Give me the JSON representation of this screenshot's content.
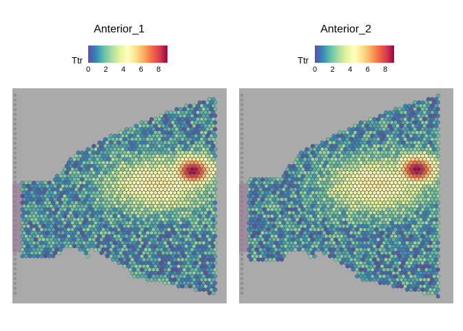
{
  "chart_data": [
    {
      "type": "heatmap",
      "title": "Anterior_1",
      "legend": {
        "title": "Ttr",
        "ticks": [
          "0",
          "2",
          "4",
          "6",
          "8"
        ],
        "range": [
          0,
          9
        ],
        "palette": "Spectral (reversed)",
        "colors": [
          "#5E4FA2",
          "#3288BD",
          "#66C2A5",
          "#ABDDA4",
          "#E6F598",
          "#FFFFBF",
          "#FEE08B",
          "#FDAE61",
          "#F46D43",
          "#D53E4F",
          "#9E0142"
        ],
        "placement": "top"
      },
      "description_values": {
        "background": "#A9AAA9",
        "hotspot_region": "right-center",
        "hotspot_max": 9
      }
    },
    {
      "type": "heatmap",
      "title": "Anterior_2",
      "legend": {
        "title": "Ttr",
        "ticks": [
          "0",
          "2",
          "4",
          "6",
          "8"
        ],
        "range": [
          0,
          9
        ],
        "palette": "Spectral (reversed)",
        "colors": [
          "#5E4FA2",
          "#3288BD",
          "#66C2A5",
          "#ABDDA4",
          "#E6F598",
          "#FFFFBF",
          "#FEE08B",
          "#FDAE61",
          "#F46D43",
          "#D53E4F",
          "#9E0142"
        ],
        "placement": "top"
      },
      "description_values": {
        "background": "#A9AAA9",
        "hotspot_region": "right-center",
        "hotspot_max": 9
      }
    }
  ]
}
